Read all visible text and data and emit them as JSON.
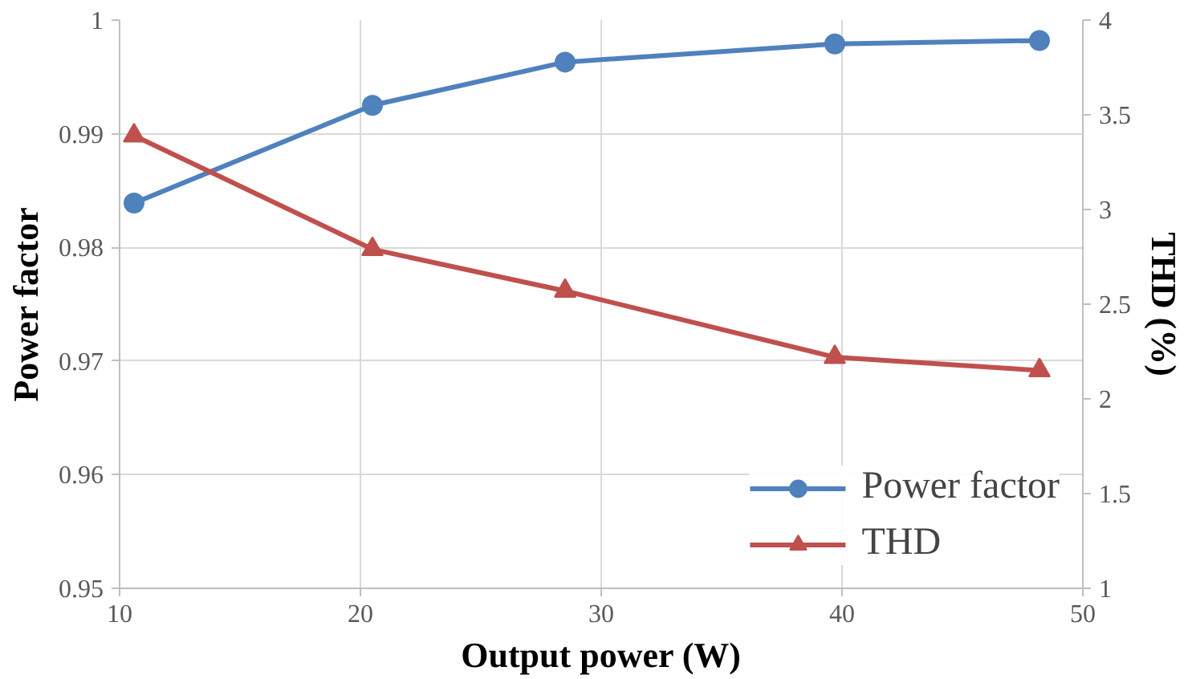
{
  "chart_data": {
    "type": "line",
    "xlabel": "Output power (W)",
    "ylabel": "Power factor",
    "y2label": "THD (%)",
    "x": [
      10.6,
      20.5,
      28.5,
      39.7,
      48.2
    ],
    "series": [
      {
        "name": "Power factor",
        "color": "#4f81bd",
        "marker": "circle",
        "values": [
          0.9839,
          0.9925,
          0.9963,
          0.9979,
          0.9982
        ]
      },
      {
        "name": "THD",
        "color": "#c0504d",
        "marker": "triangle",
        "axis": "y2",
        "values": [
          3.39,
          2.79,
          2.57,
          2.22,
          2.15
        ]
      }
    ],
    "xlim": [
      10,
      50
    ],
    "xticks": [
      10,
      20,
      30,
      40,
      50
    ],
    "ylim": [
      0.95,
      1
    ],
    "yticks": [
      0.95,
      0.96,
      0.97,
      0.98,
      0.99,
      1
    ],
    "y2lim": [
      1,
      4
    ],
    "y2ticks": [
      1,
      1.5,
      2,
      2.5,
      3,
      3.5,
      4
    ],
    "grid": true,
    "legend": "bottom right",
    "line_style": "solid"
  }
}
